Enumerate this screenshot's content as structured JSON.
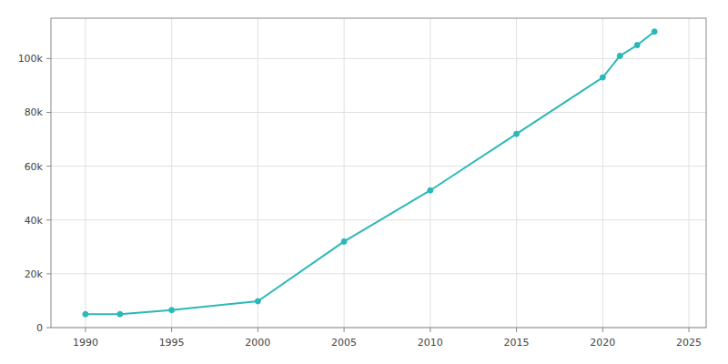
{
  "chart_data": {
    "type": "line",
    "x": [
      1990,
      1992,
      1995,
      2000,
      2005,
      2010,
      2015,
      2020,
      2021,
      2022,
      2023
    ],
    "values": [
      4989,
      5000,
      6500,
      9800,
      32000,
      51000,
      72000,
      93000,
      101000,
      105000,
      110000
    ],
    "color": "#2CB8B8",
    "marker": "circle",
    "xlim": [
      1988,
      2026
    ],
    "ylim": [
      0,
      115000
    ],
    "xticks": [
      1990,
      1995,
      2000,
      2005,
      2010,
      2015,
      2020,
      2025
    ],
    "yticks": [
      0,
      {
        "value": 20000,
        "label": "20k"
      },
      {
        "value": 40000,
        "label": "40k"
      },
      {
        "value": 60000,
        "label": "60k"
      },
      {
        "value": 80000,
        "label": "80k"
      },
      {
        "value": 100000,
        "label": "100k"
      }
    ],
    "grid": true
  }
}
